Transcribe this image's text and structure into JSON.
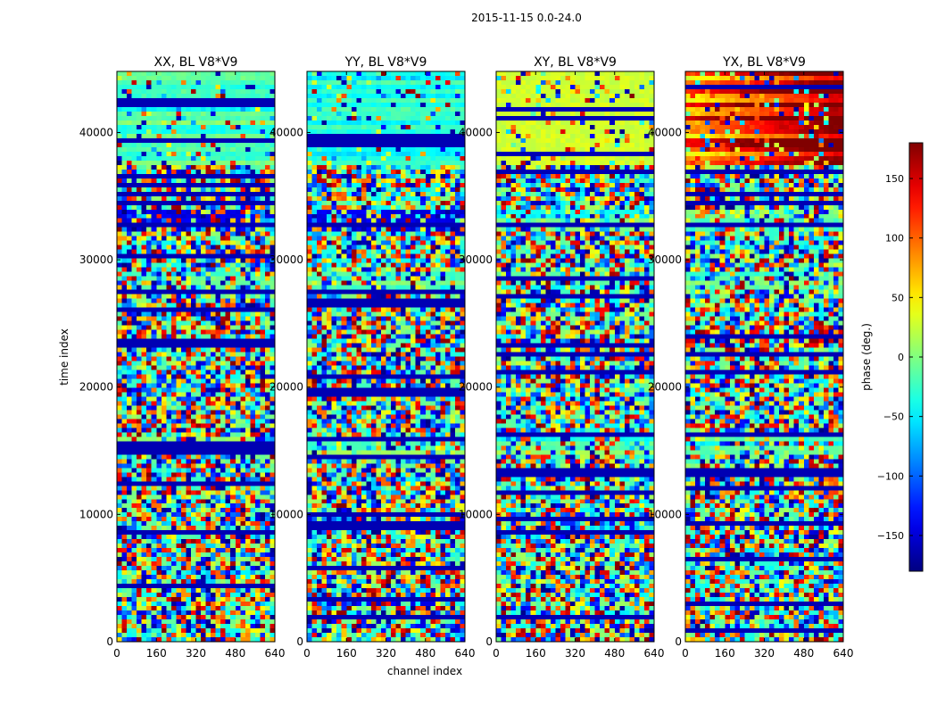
{
  "figure": {
    "suptitle": "2015-11-15 0.0-24.0"
  },
  "chart_data": {
    "type": "heatmap",
    "suptitle": "2015-11-15 0.0-24.0",
    "xlabel": "channel index",
    "ylabel": "time index",
    "xlim": [
      0,
      640
    ],
    "ylim": [
      0,
      44800
    ],
    "xticks": [
      0,
      160,
      320,
      480,
      640
    ],
    "yticks": [
      0,
      10000,
      20000,
      30000,
      40000
    ],
    "panels": [
      {
        "title": "XX, BL V8*V9",
        "pol": "XX"
      },
      {
        "title": "YY, BL V8*V9",
        "pol": "YY"
      },
      {
        "title": "XY, BL V8*V9",
        "pol": "XY"
      },
      {
        "title": "YX, BL V8*V9",
        "pol": "YX"
      }
    ],
    "colorbar": {
      "label": "phase (deg.)",
      "range": [
        -180,
        180
      ],
      "ticks": [
        -150,
        -100,
        -50,
        0,
        50,
        100,
        150
      ],
      "tick_labels": [
        "−150",
        "−100",
        "−50",
        "0",
        "50",
        "100",
        "150"
      ],
      "colormap": "jet"
    }
  }
}
